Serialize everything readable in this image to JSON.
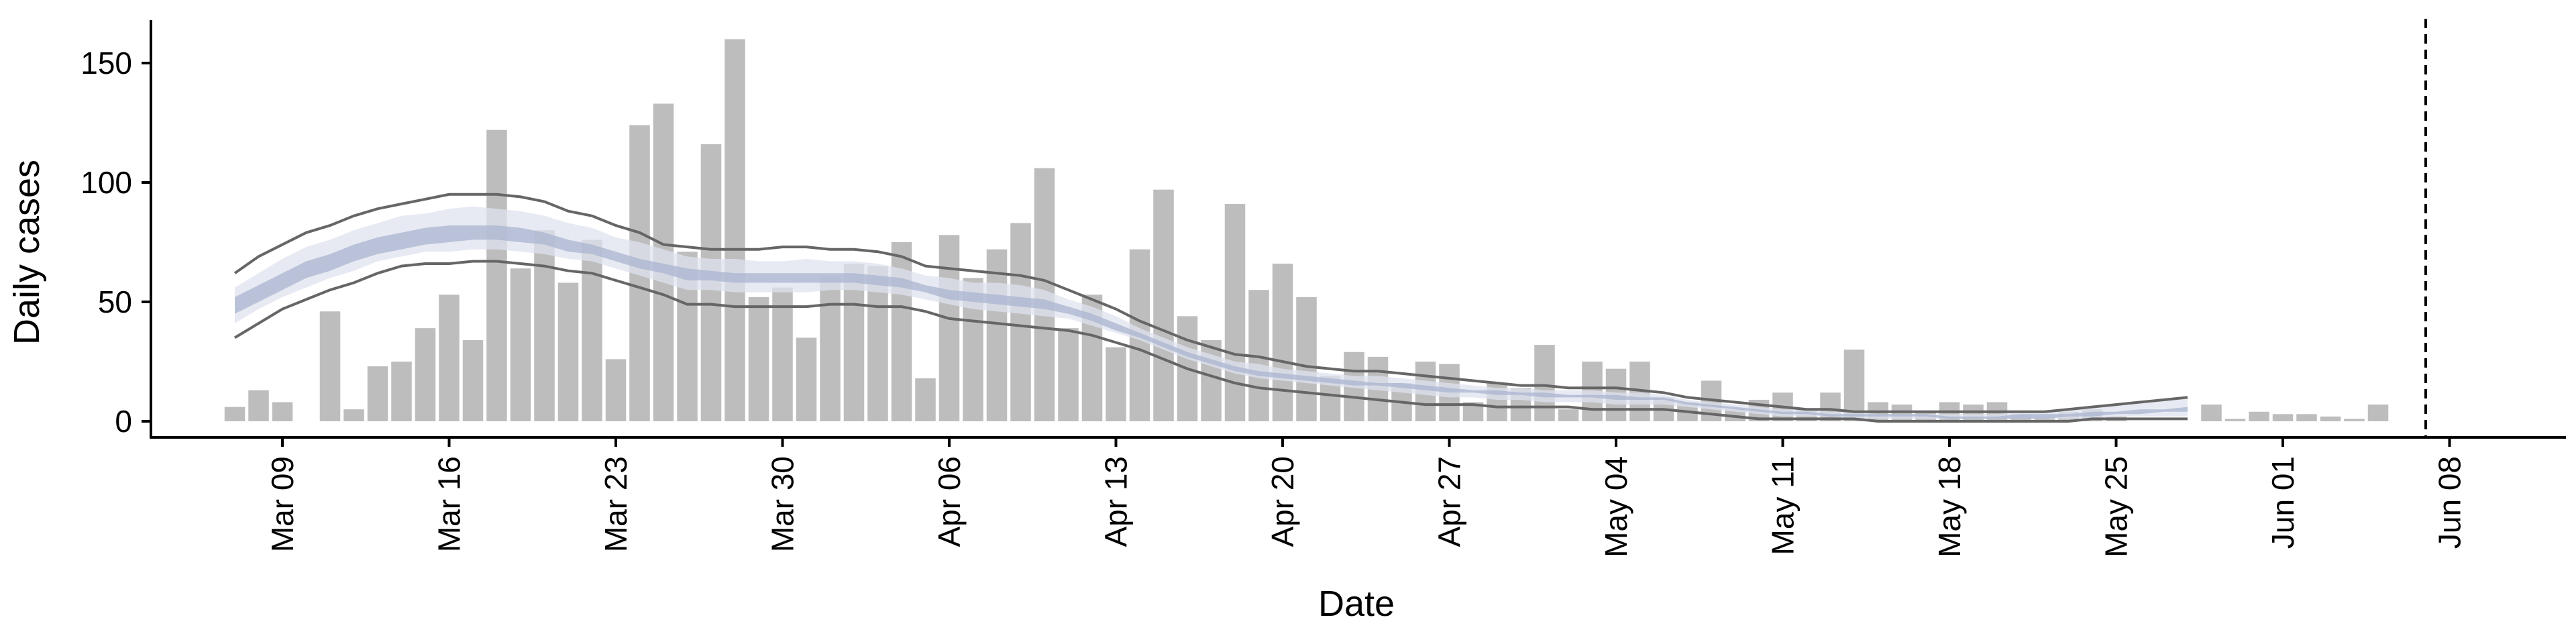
{
  "chart_data": {
    "type": "bar",
    "xlabel": "Date",
    "ylabel": "Daily cases",
    "x_start": "2020-03-07",
    "ylim": [
      -8,
      168
    ],
    "yticks": [
      0,
      50,
      100,
      150
    ],
    "xticks": [
      {
        "date": "2020-03-09",
        "label": "Mar 09"
      },
      {
        "date": "2020-03-16",
        "label": "Mar 16"
      },
      {
        "date": "2020-03-23",
        "label": "Mar 23"
      },
      {
        "date": "2020-03-30",
        "label": "Mar 30"
      },
      {
        "date": "2020-04-06",
        "label": "Apr 06"
      },
      {
        "date": "2020-04-13",
        "label": "Apr 13"
      },
      {
        "date": "2020-04-20",
        "label": "Apr 20"
      },
      {
        "date": "2020-04-27",
        "label": "Apr 27"
      },
      {
        "date": "2020-05-04",
        "label": "May 04"
      },
      {
        "date": "2020-05-11",
        "label": "May 11"
      },
      {
        "date": "2020-05-18",
        "label": "May 18"
      },
      {
        "date": "2020-05-25",
        "label": "May 25"
      },
      {
        "date": "2020-06-01",
        "label": "Jun 01"
      },
      {
        "date": "2020-06-08",
        "label": "Jun 08"
      }
    ],
    "vline_date": "2020-06-07",
    "grid": false,
    "colors": {
      "bars": "#bdbdbd",
      "band_outer": "#dfe3ef",
      "band_inner": "#a9b4cf",
      "bound_lines": "#666666",
      "vline": "#000000"
    },
    "daily_cases": [
      6,
      13,
      8,
      0,
      46,
      5,
      23,
      25,
      39,
      53,
      34,
      122,
      64,
      80,
      58,
      76,
      26,
      124,
      133,
      71,
      116,
      160,
      52,
      56,
      35,
      61,
      66,
      65,
      75,
      18,
      78,
      60,
      72,
      83,
      106,
      39,
      53,
      31,
      72,
      97,
      44,
      34,
      91,
      55,
      66,
      52,
      19,
      29,
      27,
      16,
      25,
      24,
      8,
      16,
      14,
      32,
      5,
      25,
      22,
      25,
      10,
      8,
      17,
      5,
      9,
      12,
      5,
      12,
      30,
      8,
      7,
      4,
      8,
      7,
      8,
      3,
      2,
      4,
      5,
      2,
      null,
      null,
      null,
      7,
      1,
      4,
      3,
      3,
      2,
      1,
      7
    ],
    "upper_bound": [
      62,
      69,
      74,
      79,
      82,
      86,
      89,
      91,
      93,
      95,
      95,
      95,
      94,
      92,
      88,
      86,
      82,
      79,
      74,
      73,
      72,
      72,
      72,
      73,
      73,
      72,
      72,
      71,
      69,
      65,
      64,
      63,
      62,
      61,
      59,
      55,
      51,
      47,
      42,
      38,
      34,
      31,
      28,
      27,
      25,
      23,
      22,
      21,
      21,
      20,
      19,
      18,
      17,
      16,
      15,
      15,
      14,
      14,
      14,
      13,
      12,
      10,
      9,
      8,
      7,
      6,
      5,
      5,
      4,
      4,
      4,
      4,
      4,
      4,
      4,
      4,
      4,
      5,
      6,
      7,
      8,
      9,
      10
    ],
    "lower_bound": [
      35,
      41,
      47,
      51,
      55,
      58,
      62,
      65,
      66,
      66,
      67,
      67,
      66,
      65,
      63,
      62,
      59,
      56,
      53,
      49,
      49,
      48,
      48,
      48,
      48,
      49,
      49,
      48,
      48,
      46,
      43,
      42,
      41,
      40,
      39,
      38,
      36,
      33,
      30,
      26,
      22,
      19,
      16,
      14,
      13,
      12,
      11,
      10,
      9,
      8,
      7,
      7,
      7,
      6,
      6,
      6,
      6,
      5,
      5,
      5,
      5,
      4,
      3,
      2,
      1,
      1,
      1,
      1,
      1,
      0,
      0,
      0,
      0,
      0,
      0,
      0,
      0,
      0,
      1,
      1,
      1,
      1,
      1
    ],
    "outer_band_upper": [
      56,
      62,
      68,
      73,
      76,
      80,
      83,
      86,
      87,
      89,
      90,
      89,
      88,
      86,
      83,
      81,
      77,
      75,
      72,
      69,
      68,
      68,
      67,
      67,
      68,
      67,
      67,
      66,
      64,
      61,
      60,
      58,
      58,
      57,
      55,
      51,
      48,
      44,
      39,
      35,
      31,
      28,
      25,
      24,
      22,
      21,
      20,
      19,
      19,
      18,
      17,
      16,
      15,
      14,
      14,
      13,
      13,
      13,
      12,
      12,
      11,
      9,
      8,
      7,
      6,
      5,
      5,
      4,
      4,
      3,
      3,
      3,
      3,
      3,
      3,
      4,
      4,
      5,
      6,
      7,
      8,
      9,
      10
    ],
    "outer_band_lower": [
      41,
      47,
      52,
      56,
      60,
      63,
      67,
      69,
      71,
      71,
      72,
      72,
      71,
      70,
      68,
      67,
      64,
      61,
      58,
      55,
      55,
      54,
      54,
      54,
      54,
      55,
      55,
      54,
      53,
      51,
      49,
      47,
      46,
      45,
      44,
      43,
      40,
      37,
      34,
      30,
      26,
      23,
      20,
      18,
      17,
      16,
      15,
      14,
      13,
      12,
      11,
      10,
      10,
      9,
      9,
      8,
      8,
      8,
      7,
      7,
      7,
      6,
      5,
      4,
      3,
      2,
      2,
      2,
      1,
      1,
      1,
      1,
      1,
      1,
      1,
      1,
      1,
      1,
      1,
      2,
      2,
      2,
      2
    ],
    "inner_band_upper": [
      52,
      57,
      62,
      67,
      70,
      74,
      77,
      79,
      81,
      82,
      82,
      82,
      81,
      79,
      76,
      74,
      71,
      68,
      66,
      64,
      63,
      62,
      62,
      62,
      62,
      62,
      62,
      61,
      60,
      57,
      55,
      54,
      53,
      52,
      51,
      48,
      45,
      41,
      37,
      33,
      29,
      26,
      23,
      21,
      20,
      19,
      18,
      17,
      16,
      16,
      15,
      14,
      13,
      13,
      12,
      12,
      11,
      11,
      11,
      10,
      10,
      8,
      7,
      6,
      5,
      4,
      4,
      3,
      3,
      3,
      3,
      3,
      2,
      2,
      2,
      3,
      3,
      3,
      4,
      4,
      5,
      5,
      6
    ],
    "inner_band_lower": [
      45,
      50,
      55,
      60,
      63,
      67,
      70,
      72,
      74,
      75,
      76,
      76,
      75,
      74,
      71,
      70,
      67,
      64,
      62,
      59,
      59,
      58,
      58,
      58,
      58,
      58,
      58,
      57,
      56,
      54,
      51,
      50,
      49,
      48,
      47,
      45,
      42,
      38,
      35,
      31,
      27,
      24,
      21,
      19,
      18,
      17,
      16,
      15,
      15,
      14,
      13,
      12,
      12,
      11,
      11,
      10,
      10,
      10,
      9,
      9,
      9,
      7,
      6,
      5,
      4,
      3,
      3,
      2,
      2,
      2,
      2,
      2,
      1,
      1,
      1,
      1,
      1,
      2,
      2,
      3,
      3,
      4,
      4
    ]
  }
}
